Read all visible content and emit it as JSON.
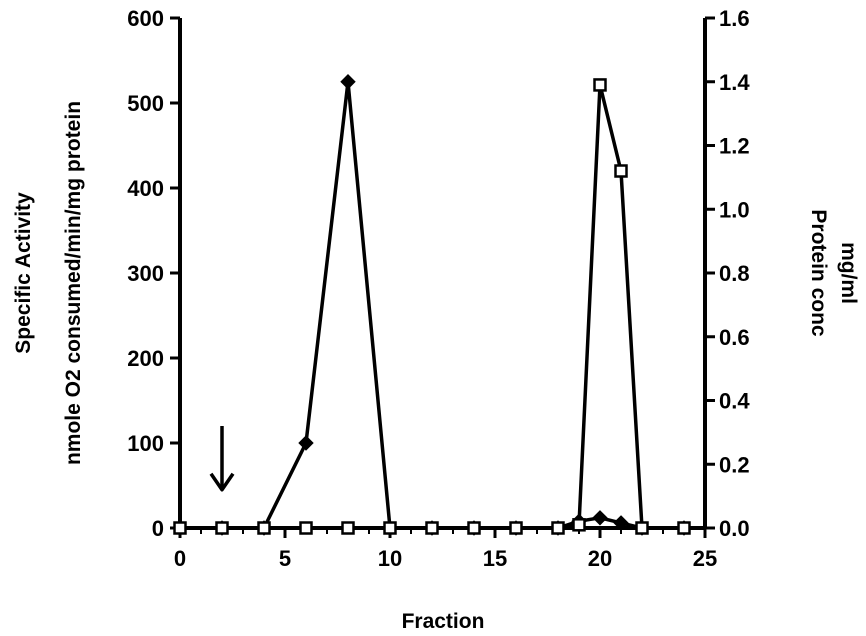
{
  "chart_data": {
    "type": "line",
    "title": "",
    "xlabel": "Fraction",
    "ylabel_left_line1": "Specific Activity",
    "ylabel_left_line2": "nmole O2 consumed/min/mg protein",
    "ylabel_right_line1": "Protein conc",
    "ylabel_right_line2": "mg/ml",
    "xlim": [
      0,
      25
    ],
    "ylim_left": [
      0,
      600
    ],
    "ylim_right": [
      0,
      1.6
    ],
    "x_ticks": [
      0,
      5,
      10,
      15,
      20,
      25
    ],
    "y_left_ticks": [
      0,
      100,
      200,
      300,
      400,
      500,
      600
    ],
    "y_right_ticks": [
      "0.0",
      "0.2",
      "0.4",
      "0.6",
      "0.8",
      "1.0",
      "1.2",
      "1.4",
      "1.6"
    ],
    "grid": false,
    "legend": "none",
    "annotations": [
      {
        "type": "arrow-down",
        "x": 2,
        "y_from": 120,
        "y_to": 45
      }
    ],
    "series": [
      {
        "marker": "diamond-filled",
        "axis": "left",
        "x": [
          0,
          2,
          4,
          6,
          8,
          10,
          12,
          14,
          16,
          18,
          19,
          20,
          21,
          22,
          24
        ],
        "y": [
          0,
          0,
          0,
          100,
          525,
          0,
          0,
          0,
          0,
          0,
          8,
          12,
          6,
          0,
          0
        ]
      },
      {
        "marker": "square-open",
        "axis": "right",
        "x": [
          0,
          2,
          4,
          6,
          8,
          10,
          12,
          14,
          16,
          18,
          19,
          20,
          21,
          22,
          24
        ],
        "y": [
          0,
          0,
          0,
          0,
          0,
          0,
          0,
          0,
          0,
          0,
          0.01,
          1.39,
          1.12,
          0,
          0
        ]
      }
    ]
  }
}
